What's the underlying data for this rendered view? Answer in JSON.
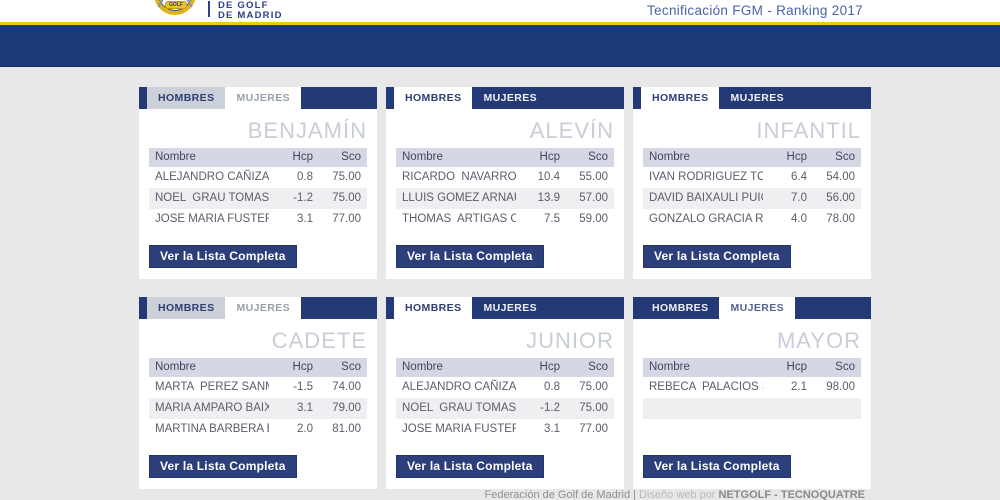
{
  "header": {
    "logo": {
      "name_line1": "DE GOLF",
      "name_line2": "DE MADRID",
      "banner_text": "GOLF"
    },
    "page_title": "Tecnificación FGM - Ranking 2017"
  },
  "columns": {
    "name": "Nombre",
    "hcp": "Hcp",
    "sco": "Sco"
  },
  "button_label": "Ver la Lista Completa",
  "tab_labels": {
    "hombres": "HOMBRES",
    "mujeres": "MUJERES"
  },
  "cards": [
    {
      "category": "BENJAMÍN",
      "tabs": {
        "hombres_label": "HOMBRES",
        "hombres_variant": "gray",
        "mujeres_label": "MUJERES",
        "mujeres_variant": "white-muted"
      },
      "columns": {
        "name": "Nombre",
        "hcp": "Hcp",
        "sco": "Sco"
      },
      "rows": [
        {
          "name": "ALEJANDRO CAÑIZARE",
          "hcp": "0.8",
          "sco": "75.00"
        },
        {
          "name": "NOEL  GRAU TOMAS",
          "hcp": "-1.2",
          "sco": "75.00"
        },
        {
          "name": "JOSE MARIA FUSTER M",
          "hcp": "3.1",
          "sco": "77.00"
        }
      ],
      "button_label": "Ver la Lista Completa"
    },
    {
      "category": "ALEVÍN",
      "tabs": {
        "hombres_label": "HOMBRES",
        "hombres_variant": "white",
        "mujeres_label": "MUJERES",
        "mujeres_variant": "navy"
      },
      "columns": {
        "name": "Nombre",
        "hcp": "Hcp",
        "sco": "Sco"
      },
      "rows": [
        {
          "name": "RICARDO  NAVARRO FA",
          "hcp": "10.4",
          "sco": "55.00"
        },
        {
          "name": "LLUIS GOMEZ ARNAU",
          "hcp": "13.9",
          "sco": "57.00"
        },
        {
          "name": "THOMAS  ARTIGAS COV",
          "hcp": "7.5",
          "sco": "59.00"
        }
      ],
      "button_label": "Ver la Lista Completa"
    },
    {
      "category": "INFANTIL",
      "tabs": {
        "hombres_label": "HOMBRES",
        "hombres_variant": "white",
        "mujeres_label": "MUJERES",
        "mujeres_variant": "navy"
      },
      "columns": {
        "name": "Nombre",
        "hcp": "Hcp",
        "sco": "Sco"
      },
      "rows": [
        {
          "name": "IVAN RODRIGUEZ TORC",
          "hcp": "6.4",
          "sco": "54.00"
        },
        {
          "name": "DAVID BAIXAULI PUIG",
          "hcp": "7.0",
          "sco": "56.00"
        },
        {
          "name": "GONZALO GRACIA RODR",
          "hcp": "4.0",
          "sco": "78.00"
        }
      ],
      "button_label": "Ver la Lista Completa"
    },
    {
      "category": "CADETE",
      "tabs": {
        "hombres_label": "HOMBRES",
        "hombres_variant": "gray",
        "mujeres_label": "MUJERES",
        "mujeres_variant": "white-muted"
      },
      "columns": {
        "name": "Nombre",
        "hcp": "Hcp",
        "sco": "Sco"
      },
      "rows": [
        {
          "name": "MARTA  PEREZ SANMAR",
          "hcp": "-1.5",
          "sco": "74.00"
        },
        {
          "name": "MARIA AMPARO BAIXAU",
          "hcp": "3.1",
          "sco": "79.00"
        },
        {
          "name": "MARTINA BARBERA BEL",
          "hcp": "2.0",
          "sco": "81.00"
        }
      ],
      "button_label": "Ver la Lista Completa"
    },
    {
      "category": "JUNIOR",
      "tabs": {
        "hombres_label": "HOMBRES",
        "hombres_variant": "white",
        "mujeres_label": "MUJERES",
        "mujeres_variant": "navy"
      },
      "columns": {
        "name": "Nombre",
        "hcp": "Hcp",
        "sco": "Sco"
      },
      "rows": [
        {
          "name": "ALEJANDRO CAÑIZARE",
          "hcp": "0.8",
          "sco": "75.00"
        },
        {
          "name": "NOEL  GRAU TOMAS",
          "hcp": "-1.2",
          "sco": "75.00"
        },
        {
          "name": "JOSE MARIA FUSTER M",
          "hcp": "3.1",
          "sco": "77.00"
        }
      ],
      "button_label": "Ver la Lista Completa"
    },
    {
      "category": "MAYOR",
      "tabs": {
        "hombres_label": "HOMBRES",
        "hombres_variant": "navy",
        "mujeres_label": "MUJERES",
        "mujeres_variant": "white-soft"
      },
      "columns": {
        "name": "Nombre",
        "hcp": "Hcp",
        "sco": "Sco"
      },
      "rows": [
        {
          "name": "REBECA  PALACIOS S",
          "hcp": "2.1",
          "sco": "98.00"
        },
        {
          "name": "",
          "hcp": "",
          "sco": ""
        },
        {
          "name": "",
          "hcp": "",
          "sco": ""
        }
      ],
      "button_label": "Ver la Lista Completa"
    }
  ],
  "footer": {
    "site": "Federación de Golf de Madrid |",
    "middle": " Diseño web por ",
    "credit": "NETGOLF - TECNOQUATRE"
  },
  "colors": {
    "navy_bar": "#1d3a78",
    "tab_bar_navy": "#243a76",
    "button_navy": "#2c3f7b",
    "gold_line": "#eec81f",
    "page_bg": "#e8e8e8",
    "table_header_bg": "#d5d8e4",
    "zebra_row_bg": "#efeff2",
    "category_title_gray": "#c9cdd8",
    "header_title_blue": "#4a64a8",
    "logo_navy": "#2a3f8f"
  }
}
